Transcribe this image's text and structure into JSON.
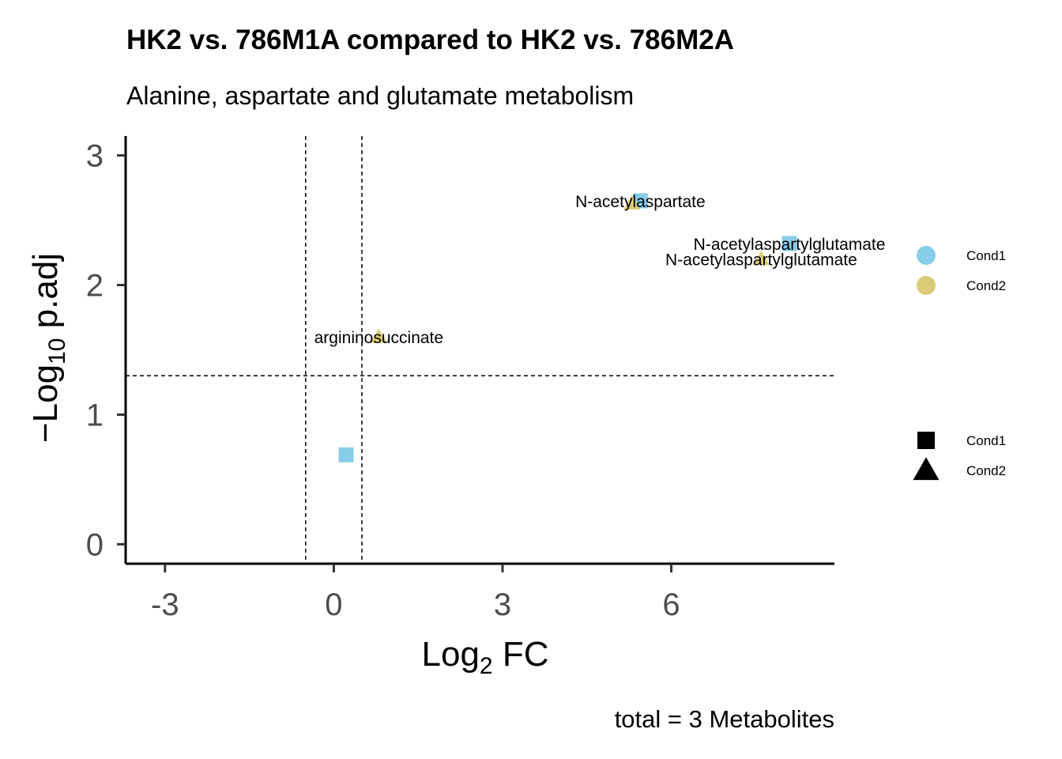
{
  "chart_data": {
    "type": "scatter",
    "title": "HK2 vs. 786M1A compared to HK2 vs. 786M2A",
    "subtitle": "Alanine, aspartate and glutamate metabolism",
    "xlabel_main": "Log",
    "xlabel_sub": "2",
    "xlabel_tail": " FC",
    "ylabel_main": "−Log",
    "ylabel_sub": "10",
    "ylabel_tail": " p.adj",
    "caption": "total = 3 Metabolites",
    "xlim": [
      -3.7,
      8.9
    ],
    "ylim": [
      -0.15,
      3.15
    ],
    "x_ticks": [
      -3,
      0,
      3,
      6
    ],
    "x_tick_labels": [
      "-3",
      "0",
      "3",
      "6"
    ],
    "y_ticks": [
      0,
      1,
      2,
      3
    ],
    "y_tick_labels": [
      "0",
      "1",
      "2",
      "3"
    ],
    "vlines": [
      -0.5,
      0.5
    ],
    "hline": 1.3,
    "grid": false,
    "series": [
      {
        "name": "Cond1",
        "shape": "square",
        "color": "#87CEEB",
        "points": [
          {
            "x": 0.22,
            "y": 0.69,
            "label": ""
          },
          {
            "x": 5.45,
            "y": 2.65,
            "label": "N-acetylaspartate"
          },
          {
            "x": 8.1,
            "y": 2.32,
            "label": "N-acetylaspartylglutamate"
          }
        ]
      },
      {
        "name": "Cond2",
        "shape": "triangle",
        "color": "#DDCC77",
        "points": [
          {
            "x": 0.8,
            "y": 1.6,
            "label": "argininosuccinate"
          },
          {
            "x": 5.3,
            "y": 2.63,
            "label": ""
          },
          {
            "x": 7.6,
            "y": 2.2,
            "label": "N-acetylaspartylglutamate"
          }
        ]
      }
    ],
    "legend_color": {
      "items": [
        {
          "label": "Cond1",
          "color": "#87CEEB"
        },
        {
          "label": "Cond2",
          "color": "#DDCC77"
        }
      ]
    },
    "legend_shape": {
      "items": [
        {
          "label": "Cond1",
          "shape": "square"
        },
        {
          "label": "Cond2",
          "shape": "triangle"
        }
      ]
    },
    "legend_position": "right"
  }
}
